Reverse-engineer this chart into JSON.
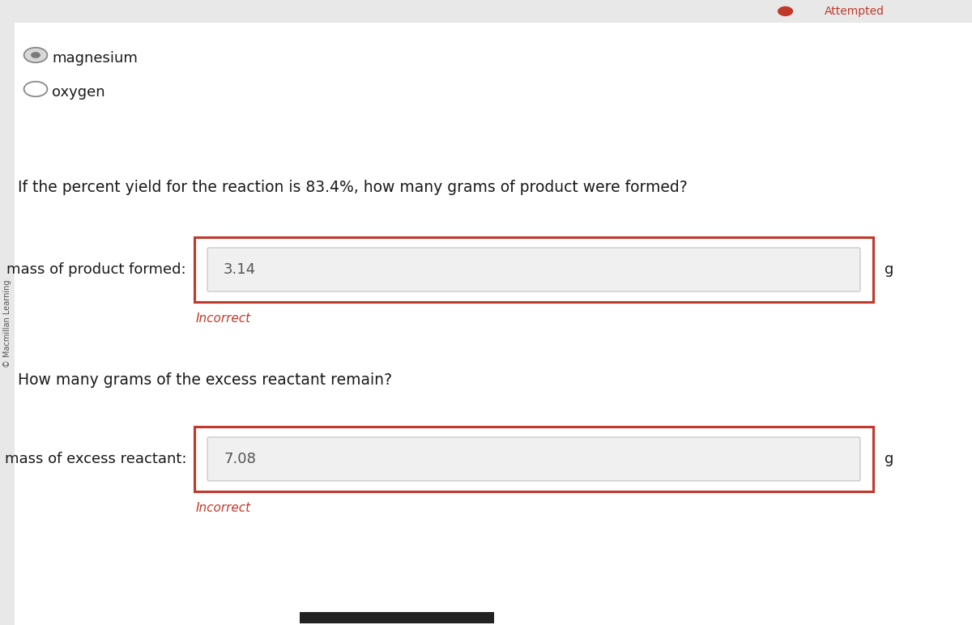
{
  "bg_color": "#ffffff",
  "sidebar_text": "© Macmillan Learning",
  "sidebar_bg": "#e8e8e8",
  "top_bar_bg": "#e8e8e8",
  "top_bar_text": "Attempted",
  "radio1_label": "magnesium",
  "radio1_filled": true,
  "radio2_label": "oxygen",
  "radio2_filled": false,
  "question1": "If the percent yield for the reaction is 83.4%, how many grams of product were formed?",
  "label1": "mass of product formed:",
  "value1": "3.14",
  "unit1": "g",
  "incorrect1": "Incorrect",
  "question2": "How many grams of the excess reactant remain?",
  "label2": "mass of excess reactant:",
  "value2": "7.08",
  "unit2": "g",
  "incorrect2": "Incorrect",
  "input_bg": "#f0f0f0",
  "input_border_color": "#c0c0c0",
  "box_border_color": "#c0392b",
  "incorrect_color": "#c0392b",
  "text_color": "#1a1a1a",
  "label_fontsize": 13,
  "question_fontsize": 13.5,
  "value_fontsize": 13,
  "incorrect_fontsize": 11,
  "radio_color_filled": "#7a7a7a",
  "radio_color_empty": "#ffffff",
  "radio_border_color": "#888888",
  "bottom_bar_color": "#222222"
}
